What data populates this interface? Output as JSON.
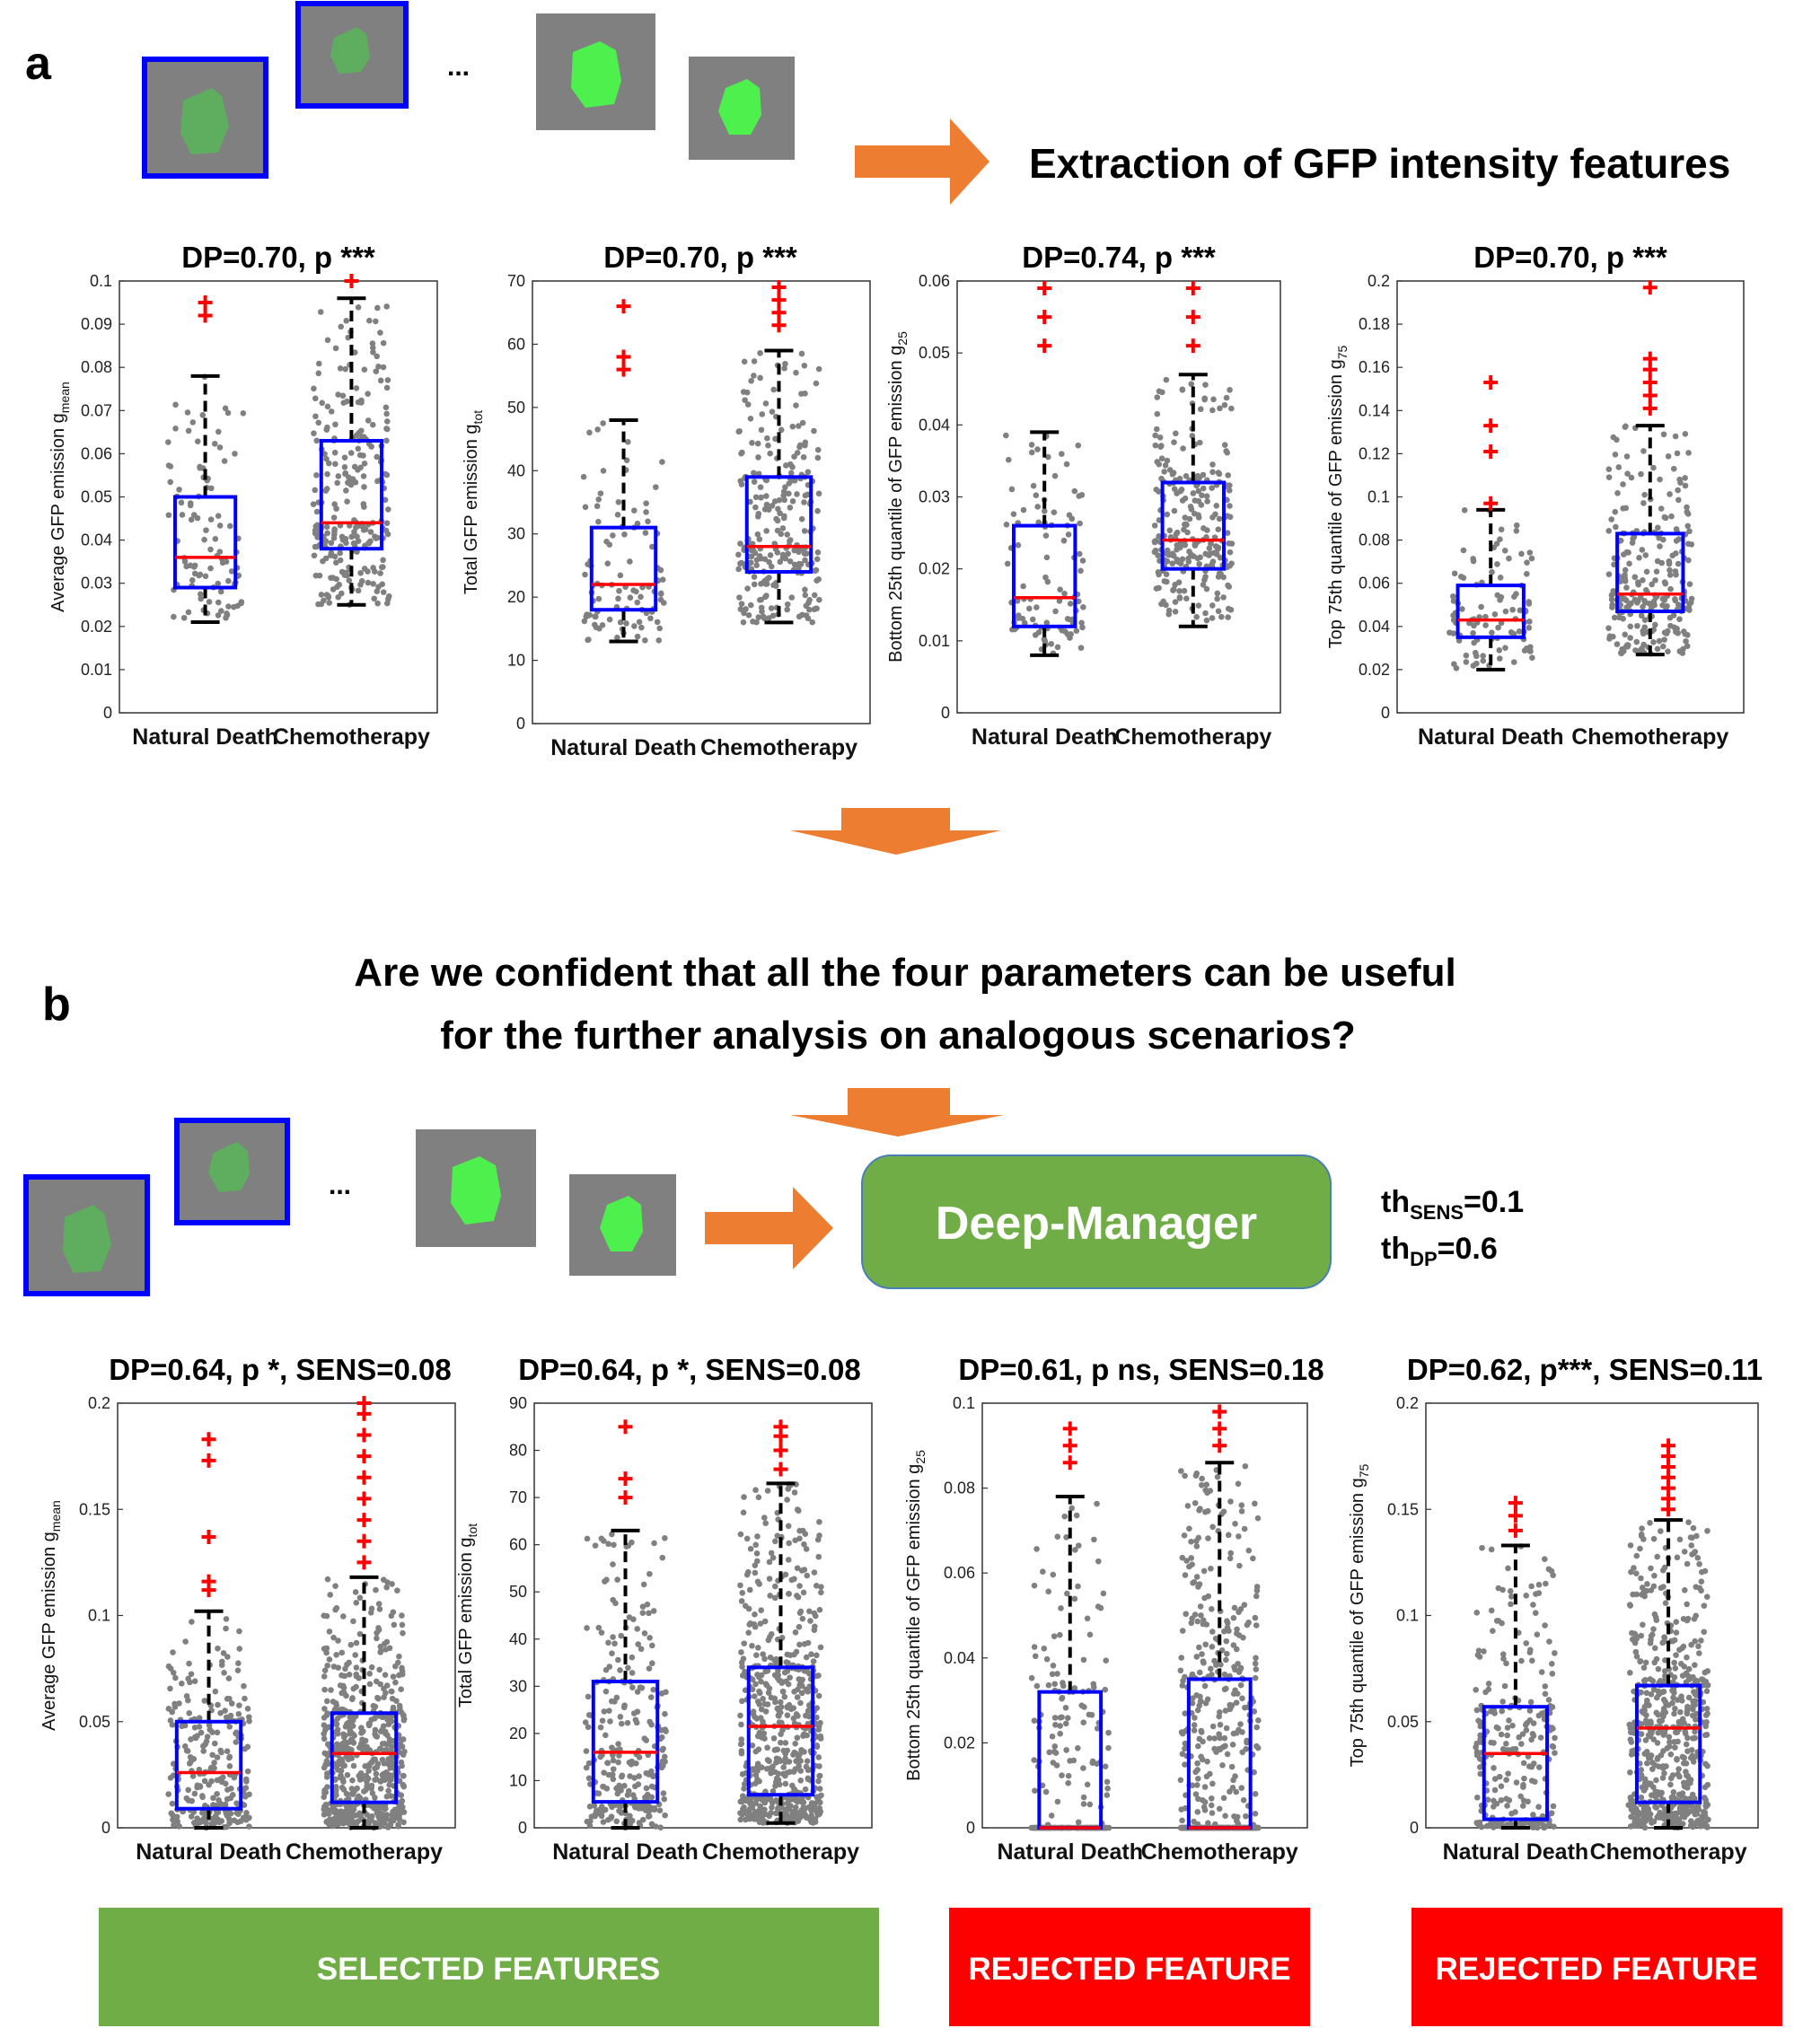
{
  "panel_a": {
    "label": "a",
    "extraction_title": "Extraction of GFP intensity features",
    "ellipsis": "...",
    "plots": [
      {
        "title": "DP=0.70, p ***",
        "ylabel": "Average GFP emission g",
        "ysub": "mean",
        "ylim": [
          0,
          0.1
        ],
        "ticks": [
          "0",
          "0.01",
          "0.02",
          "0.03",
          "0.04",
          "0.05",
          "0.06",
          "0.07",
          "0.08",
          "0.09",
          "0.1"
        ],
        "categories": [
          "Natural Death",
          "Chemotherapy"
        ],
        "boxes": [
          {
            "q1": 0.029,
            "median": 0.036,
            "q3": 0.05,
            "wlo": 0.021,
            "whi": 0.078,
            "outliers": [
              0.092,
              0.095
            ],
            "n": 100
          },
          {
            "q1": 0.038,
            "median": 0.044,
            "q3": 0.063,
            "wlo": 0.025,
            "whi": 0.096,
            "outliers": [
              0.1
            ],
            "n": 260
          }
        ]
      },
      {
        "title": "DP=0.70, p  ***",
        "ylabel": "Total GFP emission g",
        "ysub": "tot",
        "ylim": [
          0,
          70
        ],
        "ticks": [
          "0",
          "10",
          "20",
          "30",
          "40",
          "50",
          "60",
          "70"
        ],
        "categories": [
          "Natural Death",
          "Chemotherapy"
        ],
        "boxes": [
          {
            "q1": 18,
            "median": 22,
            "q3": 31,
            "wlo": 13,
            "whi": 48,
            "outliers": [
              56,
              58,
              66
            ],
            "n": 100
          },
          {
            "q1": 24,
            "median": 28,
            "q3": 39,
            "wlo": 16,
            "whi": 59,
            "outliers": [
              63,
              65,
              67,
              69
            ],
            "n": 260
          }
        ]
      },
      {
        "title": "DP=0.74, p  ***",
        "ylabel": "Bottom 25th quantile of GFP emission g",
        "ysub": "25",
        "ylim": [
          0,
          0.06
        ],
        "ticks": [
          "0",
          "0.01",
          "0.02",
          "0.03",
          "0.04",
          "0.05",
          "0.06"
        ],
        "categories": [
          "Natural Death",
          "Chemotherapy"
        ],
        "boxes": [
          {
            "q1": 0.012,
            "median": 0.016,
            "q3": 0.026,
            "wlo": 0.008,
            "whi": 0.039,
            "outliers": [
              0.051,
              0.055,
              0.059
            ],
            "n": 100
          },
          {
            "q1": 0.02,
            "median": 0.024,
            "q3": 0.032,
            "wlo": 0.012,
            "whi": 0.047,
            "outliers": [
              0.051,
              0.055,
              0.059
            ],
            "n": 260
          }
        ]
      },
      {
        "title": "DP=0.70, p  ***",
        "ylabel": "Top 75th quantile of GFP emission g",
        "ysub": "75",
        "ylim": [
          0,
          0.2
        ],
        "ticks": [
          "0",
          "0.02",
          "0.04",
          "0.06",
          "0.08",
          "0.1",
          "0.12",
          "0.14",
          "0.16",
          "0.18",
          "0.2"
        ],
        "categories": [
          "Natural Death",
          "Chemotherapy"
        ],
        "boxes": [
          {
            "q1": 0.035,
            "median": 0.043,
            "q3": 0.059,
            "wlo": 0.02,
            "whi": 0.094,
            "outliers": [
              0.097,
              0.121,
              0.133,
              0.153
            ],
            "n": 100
          },
          {
            "q1": 0.047,
            "median": 0.055,
            "q3": 0.083,
            "wlo": 0.027,
            "whi": 0.133,
            "outliers": [
              0.141,
              0.147,
              0.153,
              0.159,
              0.164,
              0.197
            ],
            "n": 260
          }
        ]
      }
    ]
  },
  "panel_b": {
    "label": "b",
    "question_line1": "Are we confident that all the four parameters can be useful",
    "question_line2": "for the further analysis on analogous scenarios?",
    "ellipsis": "...",
    "manager_label": "Deep-Manager",
    "th_sens_base": "th",
    "th_sens_sub": "SENS",
    "th_sens_val": "=0.1",
    "th_dp_base": "th",
    "th_dp_sub": "DP",
    "th_dp_val": "=0.6",
    "plots": [
      {
        "title": "DP=0.64, p *, SENS=0.08",
        "ylabel": "Average GFP emission g",
        "ysub": "mean",
        "ylim": [
          0,
          0.2
        ],
        "ticks": [
          "0",
          "0.05",
          "0.1",
          "0.15",
          "0.2"
        ],
        "categories": [
          "Natural Death",
          "Chemotherapy"
        ],
        "boxes": [
          {
            "q1": 0.009,
            "median": 0.026,
            "q3": 0.05,
            "wlo": 0,
            "whi": 0.102,
            "outliers": [
              0.112,
              0.116,
              0.137,
              0.173,
              0.183
            ],
            "n": 260
          },
          {
            "q1": 0.012,
            "median": 0.035,
            "q3": 0.054,
            "wlo": 0,
            "whi": 0.118,
            "outliers": [
              0.125,
              0.135,
              0.145,
              0.155,
              0.165,
              0.175,
              0.185,
              0.195,
              0.2
            ],
            "n": 600
          }
        ]
      },
      {
        "title": "DP=0.64, p *, SENS=0.08",
        "ylabel": "Total GFP emission g",
        "ysub": "tot",
        "ylim": [
          0,
          90
        ],
        "ticks": [
          "0",
          "10",
          "20",
          "30",
          "40",
          "50",
          "60",
          "70",
          "80",
          "90"
        ],
        "categories": [
          "Natural Death",
          "Chemotherapy"
        ],
        "boxes": [
          {
            "q1": 5.5,
            "median": 16,
            "q3": 31,
            "wlo": 0,
            "whi": 63,
            "outliers": [
              70,
              74,
              85
            ],
            "n": 260
          },
          {
            "q1": 7,
            "median": 21.5,
            "q3": 34,
            "wlo": 1,
            "whi": 73,
            "outliers": [
              76,
              80,
              83,
              85
            ],
            "n": 600
          }
        ]
      },
      {
        "title": "DP=0.61, p ns, SENS=0.18",
        "ylabel": "Bottom 25th quantile of GFP emission g",
        "ysub": "25",
        "ylim": [
          0,
          0.1
        ],
        "ticks": [
          "0",
          "0.02",
          "0.04",
          "0.06",
          "0.08",
          "0.1"
        ],
        "categories": [
          "Natural Death",
          "Chemotherapy"
        ],
        "boxes": [
          {
            "q1": 0,
            "median": 0,
            "q3": 0.032,
            "wlo": 0,
            "whi": 0.078,
            "outliers": [
              0.086,
              0.09,
              0.094
            ],
            "n": 260
          },
          {
            "q1": 0,
            "median": 0,
            "q3": 0.035,
            "wlo": 0,
            "whi": 0.086,
            "outliers": [
              0.09,
              0.094,
              0.098
            ],
            "n": 600
          }
        ]
      },
      {
        "title": "DP=0.62, p***, SENS=0.11",
        "ylabel": "Top 75th quantile of GFP emission g",
        "ysub": "75",
        "ylim": [
          0,
          0.2
        ],
        "ticks": [
          "0",
          "0.05",
          "0.1",
          "0.15",
          "0.2"
        ],
        "categories": [
          "Natural Death",
          "Chemotherapy"
        ],
        "boxes": [
          {
            "q1": 0.004,
            "median": 0.035,
            "q3": 0.057,
            "wlo": 0,
            "whi": 0.133,
            "outliers": [
              0.14,
              0.147,
              0.153
            ],
            "n": 260
          },
          {
            "q1": 0.012,
            "median": 0.047,
            "q3": 0.067,
            "wlo": 0,
            "whi": 0.145,
            "outliers": [
              0.15,
              0.155,
              0.16,
              0.165,
              0.17,
              0.175,
              0.18
            ],
            "n": 600
          }
        ]
      }
    ],
    "badges": [
      {
        "text": "SELECTED FEATURES",
        "color": "#70ad47"
      },
      {
        "text": "REJECTED FEATURE",
        "color": "#ff0000"
      },
      {
        "text": "REJECTED FEATURE",
        "color": "#ff0000"
      }
    ]
  },
  "colors": {
    "arrow": "#ed7d31",
    "box": "#0000ff",
    "median": "#ff0000",
    "points": "#808080",
    "manager": "#70ad47",
    "thumb_bg": "#808080"
  }
}
